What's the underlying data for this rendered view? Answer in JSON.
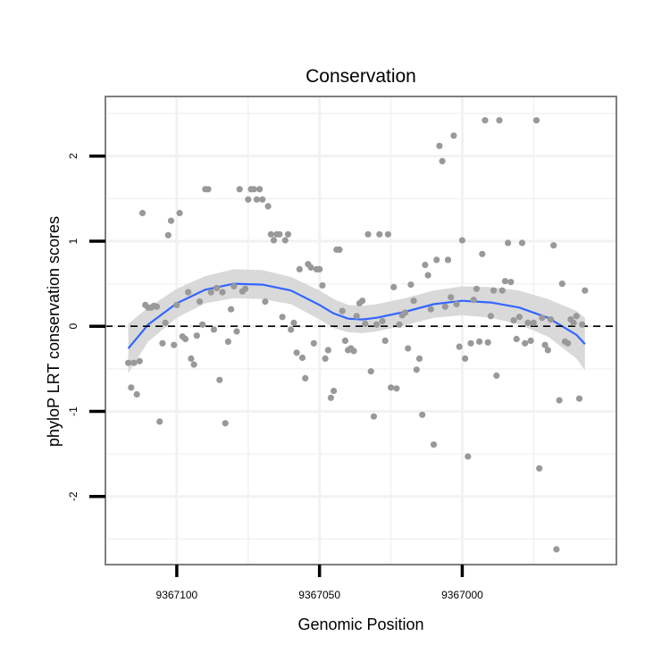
{
  "chart_data": {
    "type": "scatter",
    "title": "Conservation",
    "xlabel": "Genomic Position",
    "ylabel": "phyloP LRT conservation scores",
    "x_reversed": true,
    "xlim": [
      9367125,
      9366946
    ],
    "ylim": [
      -2.8,
      2.7
    ],
    "x_ticks": [
      9367100,
      9367050,
      9367000
    ],
    "x_tick_labels": [
      "9367100",
      "9367050",
      "9367000"
    ],
    "y_ticks": [
      -2,
      -1,
      0,
      1,
      2
    ],
    "y_tick_labels": [
      "-2",
      "-1",
      "0",
      "1",
      "2"
    ],
    "reference_line_y": 0,
    "grid": true,
    "colors": {
      "points": "#999999",
      "smooth": "#3366ff",
      "ribbon": "#d9d9d9",
      "panel_border": "#7f7f7f",
      "grid": "#f2f2f2",
      "reference": "#000000"
    },
    "points": [
      {
        "x": 9367117,
        "y": -0.43
      },
      {
        "x": 9367116,
        "y": -0.72
      },
      {
        "x": 9367115,
        "y": -0.43
      },
      {
        "x": 9367114,
        "y": -0.8
      },
      {
        "x": 9367113,
        "y": -0.41
      },
      {
        "x": 9367112,
        "y": 1.33
      },
      {
        "x": 9367111,
        "y": 0.25
      },
      {
        "x": 9367110,
        "y": 0.22
      },
      {
        "x": 9367109,
        "y": 0.22
      },
      {
        "x": 9367108,
        "y": 0.24
      },
      {
        "x": 9367107,
        "y": 0.23
      },
      {
        "x": 9367106,
        "y": -1.12
      },
      {
        "x": 9367105,
        "y": -0.2
      },
      {
        "x": 9367104,
        "y": 0.04
      },
      {
        "x": 9367103,
        "y": 1.07
      },
      {
        "x": 9367102,
        "y": 1.24
      },
      {
        "x": 9367101,
        "y": -0.22
      },
      {
        "x": 9367100,
        "y": 0.25
      },
      {
        "x": 9367099,
        "y": 1.33
      },
      {
        "x": 9367098,
        "y": -0.12
      },
      {
        "x": 9367097,
        "y": -0.15
      },
      {
        "x": 9367096,
        "y": 0.4
      },
      {
        "x": 9367095,
        "y": -0.38
      },
      {
        "x": 9367094,
        "y": -0.45
      },
      {
        "x": 9367093,
        "y": -0.11
      },
      {
        "x": 9367092,
        "y": 0.29
      },
      {
        "x": 9367091,
        "y": 0.02
      },
      {
        "x": 9367090,
        "y": 1.61
      },
      {
        "x": 9367089,
        "y": 1.61
      },
      {
        "x": 9367088,
        "y": 0.4
      },
      {
        "x": 9367087,
        "y": -0.04
      },
      {
        "x": 9367086,
        "y": 0.45
      },
      {
        "x": 9367085,
        "y": -0.63
      },
      {
        "x": 9367084,
        "y": 0.4
      },
      {
        "x": 9367083,
        "y": -1.14
      },
      {
        "x": 9367082,
        "y": -0.18
      },
      {
        "x": 9367081,
        "y": 0.2
      },
      {
        "x": 9367080,
        "y": 0.47
      },
      {
        "x": 9367079,
        "y": -0.06
      },
      {
        "x": 9367078,
        "y": 1.61
      },
      {
        "x": 9367077,
        "y": 0.41
      },
      {
        "x": 9367076,
        "y": 0.44
      },
      {
        "x": 9367075,
        "y": 1.49
      },
      {
        "x": 9367074,
        "y": 1.61
      },
      {
        "x": 9367073,
        "y": 1.61
      },
      {
        "x": 9367072,
        "y": 1.49
      },
      {
        "x": 9367071,
        "y": 1.61
      },
      {
        "x": 9367070,
        "y": 1.49
      },
      {
        "x": 9367069,
        "y": 0.29
      },
      {
        "x": 9367068,
        "y": 1.41
      },
      {
        "x": 9367067,
        "y": 1.08
      },
      {
        "x": 9367066,
        "y": 1.01
      },
      {
        "x": 9367065,
        "y": 1.08
      },
      {
        "x": 9367064,
        "y": 1.08
      },
      {
        "x": 9367063,
        "y": 0.11
      },
      {
        "x": 9367062,
        "y": 1.01
      },
      {
        "x": 9367061,
        "y": 1.08
      },
      {
        "x": 9367060,
        "y": -0.04
      },
      {
        "x": 9367059,
        "y": 0.04
      },
      {
        "x": 9367058,
        "y": -0.31
      },
      {
        "x": 9367057,
        "y": 0.67
      },
      {
        "x": 9367056,
        "y": -0.37
      },
      {
        "x": 9367055,
        "y": -0.61
      },
      {
        "x": 9367054,
        "y": 0.73
      },
      {
        "x": 9367053,
        "y": 0.69
      },
      {
        "x": 9367052,
        "y": -0.2
      },
      {
        "x": 9367051,
        "y": 0.67
      },
      {
        "x": 9367050,
        "y": 0.67
      },
      {
        "x": 9367049,
        "y": 0.48
      },
      {
        "x": 9367048,
        "y": -0.38
      },
      {
        "x": 9367047,
        "y": -0.28
      },
      {
        "x": 9367046,
        "y": -0.84
      },
      {
        "x": 9367045,
        "y": -0.76
      },
      {
        "x": 9367044,
        "y": 0.9
      },
      {
        "x": 9367043,
        "y": 0.9
      },
      {
        "x": 9367042,
        "y": 0.18
      },
      {
        "x": 9367041,
        "y": -0.17
      },
      {
        "x": 9367040,
        "y": -0.28
      },
      {
        "x": 9367039,
        "y": -0.26
      },
      {
        "x": 9367038,
        "y": -0.29
      },
      {
        "x": 9367037,
        "y": 0.12
      },
      {
        "x": 9367036,
        "y": 0.27
      },
      {
        "x": 9367035,
        "y": 0.3
      },
      {
        "x": 9367034,
        "y": 0.03
      },
      {
        "x": 9367033,
        "y": 1.08
      },
      {
        "x": 9367032,
        "y": -0.53
      },
      {
        "x": 9367031,
        "y": -1.06
      },
      {
        "x": 9367030,
        "y": 0.02
      },
      {
        "x": 9367029,
        "y": 1.08
      },
      {
        "x": 9367028,
        "y": 0.06
      },
      {
        "x": 9367027,
        "y": -0.17
      },
      {
        "x": 9367026,
        "y": 1.08
      },
      {
        "x": 9367025,
        "y": -0.72
      },
      {
        "x": 9367024,
        "y": 0.46
      },
      {
        "x": 9367023,
        "y": -0.73
      },
      {
        "x": 9367022,
        "y": 0.02
      },
      {
        "x": 9367021,
        "y": 0.13
      },
      {
        "x": 9367020,
        "y": 0.16
      },
      {
        "x": 9367019,
        "y": -0.26
      },
      {
        "x": 9367018,
        "y": 0.49
      },
      {
        "x": 9367017,
        "y": 0.3
      },
      {
        "x": 9367016,
        "y": -0.51
      },
      {
        "x": 9367015,
        "y": -0.38
      },
      {
        "x": 9367014,
        "y": -1.04
      },
      {
        "x": 9367013,
        "y": 0.72
      },
      {
        "x": 9367012,
        "y": 0.6
      },
      {
        "x": 9367011,
        "y": 0.2
      },
      {
        "x": 9367010,
        "y": -1.39
      },
      {
        "x": 9367009,
        "y": 0.78
      },
      {
        "x": 9367008,
        "y": 2.12
      },
      {
        "x": 9367007,
        "y": 1.94
      },
      {
        "x": 9367006,
        "y": 0.23
      },
      {
        "x": 9367005,
        "y": 0.78
      },
      {
        "x": 9367004,
        "y": 0.34
      },
      {
        "x": 9367003,
        "y": 2.24
      },
      {
        "x": 9367002,
        "y": 0.26
      },
      {
        "x": 9367001,
        "y": -0.24
      },
      {
        "x": 9367000,
        "y": 1.01
      },
      {
        "x": 9366999,
        "y": -0.38
      },
      {
        "x": 9366998,
        "y": -1.53
      },
      {
        "x": 9366997,
        "y": -0.2
      },
      {
        "x": 9366996,
        "y": 0.31
      },
      {
        "x": 9366995,
        "y": 0.44
      },
      {
        "x": 9366994,
        "y": -0.18
      },
      {
        "x": 9366993,
        "y": 0.85
      },
      {
        "x": 9366992,
        "y": 2.42
      },
      {
        "x": 9366991,
        "y": -0.19
      },
      {
        "x": 9366990,
        "y": 0.12
      },
      {
        "x": 9366989,
        "y": 0.42
      },
      {
        "x": 9366988,
        "y": -0.58
      },
      {
        "x": 9366987,
        "y": 2.42
      },
      {
        "x": 9366986,
        "y": 0.42
      },
      {
        "x": 9366985,
        "y": 0.53
      },
      {
        "x": 9366984,
        "y": 0.98
      },
      {
        "x": 9366983,
        "y": 0.52
      },
      {
        "x": 9366982,
        "y": 0.07
      },
      {
        "x": 9366981,
        "y": -0.15
      },
      {
        "x": 9366980,
        "y": 0.11
      },
      {
        "x": 9366979,
        "y": 0.98
      },
      {
        "x": 9366978,
        "y": -0.2
      },
      {
        "x": 9366977,
        "y": 0.04
      },
      {
        "x": 9366976,
        "y": -0.17
      },
      {
        "x": 9366975,
        "y": 0.04
      },
      {
        "x": 9366974,
        "y": 2.42
      },
      {
        "x": 9366973,
        "y": -1.67
      },
      {
        "x": 9366972,
        "y": 0.1
      },
      {
        "x": 9366971,
        "y": -0.22
      },
      {
        "x": 9366970,
        "y": -0.28
      },
      {
        "x": 9366969,
        "y": 0.08
      },
      {
        "x": 9366968,
        "y": 0.95
      },
      {
        "x": 9366967,
        "y": -2.62
      },
      {
        "x": 9366966,
        "y": -0.87
      },
      {
        "x": 9366965,
        "y": 0.5
      },
      {
        "x": 9366964,
        "y": -0.18
      },
      {
        "x": 9366963,
        "y": -0.2
      },
      {
        "x": 9366962,
        "y": 0.08
      },
      {
        "x": 9366961,
        "y": 0.04
      },
      {
        "x": 9366960,
        "y": 0.12
      },
      {
        "x": 9366959,
        "y": -0.85
      },
      {
        "x": 9366958,
        "y": 0.02
      },
      {
        "x": 9366957,
        "y": 0.42
      }
    ],
    "smooth": {
      "method": "loess",
      "x": [
        9367117,
        9367110,
        9367100,
        9367090,
        9367080,
        9367070,
        9367060,
        9367050,
        9367045,
        9367040,
        9367035,
        9367030,
        9367020,
        9367010,
        9367000,
        9366990,
        9366980,
        9366970,
        9366960,
        9366957
      ],
      "y": [
        -0.26,
        0.02,
        0.27,
        0.43,
        0.5,
        0.49,
        0.42,
        0.25,
        0.15,
        0.09,
        0.08,
        0.1,
        0.17,
        0.26,
        0.3,
        0.28,
        0.22,
        0.1,
        -0.1,
        -0.21
      ],
      "lower": [
        -0.55,
        -0.18,
        0.1,
        0.27,
        0.33,
        0.32,
        0.26,
        0.08,
        -0.02,
        -0.07,
        -0.08,
        -0.06,
        0.01,
        0.1,
        0.13,
        0.1,
        0.02,
        -0.12,
        -0.38,
        -0.52
      ],
      "upper": [
        0.03,
        0.22,
        0.44,
        0.59,
        0.67,
        0.66,
        0.58,
        0.42,
        0.32,
        0.25,
        0.24,
        0.26,
        0.33,
        0.42,
        0.47,
        0.46,
        0.42,
        0.32,
        0.18,
        0.1
      ]
    }
  }
}
